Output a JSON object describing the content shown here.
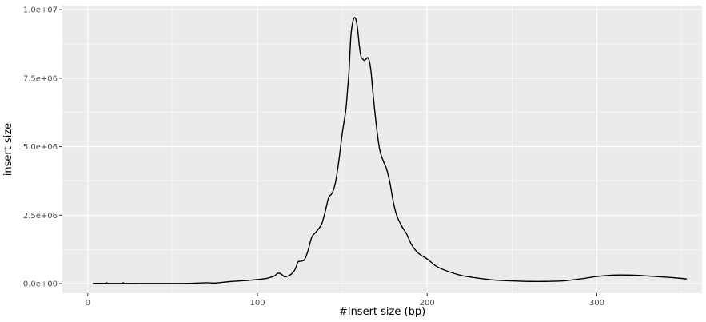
{
  "chart_data": {
    "type": "line",
    "xlabel": "#Insert size (bp)",
    "ylabel": "insert size",
    "xlim": [
      -15,
      362
    ],
    "ylim": [
      -350000,
      10150000
    ],
    "x_ticks": [
      0,
      100,
      200,
      300
    ],
    "x_tick_labels": [
      "0",
      "100",
      "200",
      "300"
    ],
    "y_ticks": [
      0,
      2500000,
      5000000,
      7500000,
      10000000
    ],
    "y_tick_labels": [
      "0.0e+00",
      "2.5e+06",
      "5.0e+06",
      "7.5e+06",
      "1.0e+07"
    ],
    "grid": true,
    "colors": {
      "panel": "#ebebeb",
      "grid_major": "#ffffff",
      "line": "#000000"
    },
    "series": [
      {
        "x": [
          3,
          10,
          11,
          12,
          15,
          20,
          21,
          22,
          30,
          40,
          50,
          60,
          70,
          75,
          80,
          85,
          90,
          95,
          100,
          103,
          106,
          110,
          112,
          114,
          116,
          118,
          120,
          122,
          123,
          124,
          126,
          128,
          130,
          132,
          134,
          136,
          138,
          140,
          142,
          144,
          146,
          148,
          150,
          152,
          153,
          154,
          155,
          156,
          157,
          158,
          159,
          160,
          161,
          162,
          163,
          164,
          165,
          166,
          167,
          168,
          170,
          172,
          174,
          176,
          178,
          180,
          182,
          185,
          188,
          191,
          195,
          200,
          205,
          210,
          220,
          230,
          240,
          250,
          260,
          270,
          280,
          290,
          300,
          310,
          320,
          330,
          340,
          350,
          353
        ],
        "y": [
          10000,
          10000,
          30000,
          10000,
          5000,
          10000,
          30000,
          5000,
          5000,
          5000,
          5000,
          10000,
          30000,
          20000,
          50000,
          80000,
          100000,
          120000,
          150000,
          170000,
          200000,
          280000,
          380000,
          350000,
          250000,
          280000,
          350000,
          500000,
          650000,
          800000,
          820000,
          900000,
          1250000,
          1700000,
          1850000,
          2000000,
          2200000,
          2650000,
          3150000,
          3300000,
          3700000,
          4500000,
          5500000,
          6300000,
          7000000,
          7800000,
          9000000,
          9500000,
          9700000,
          9650000,
          9300000,
          8700000,
          8300000,
          8200000,
          8150000,
          8200000,
          8250000,
          8100000,
          7700000,
          7000000,
          5800000,
          4900000,
          4500000,
          4200000,
          3700000,
          3000000,
          2500000,
          2100000,
          1800000,
          1400000,
          1100000,
          900000,
          650000,
          500000,
          300000,
          200000,
          130000,
          100000,
          80000,
          80000,
          100000,
          170000,
          260000,
          310000,
          310000,
          280000,
          240000,
          190000,
          170000
        ]
      }
    ]
  }
}
